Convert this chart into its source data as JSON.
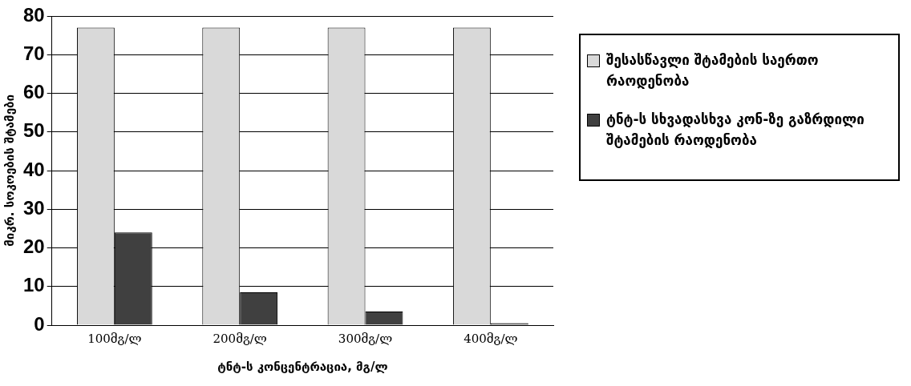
{
  "chart_data": {
    "type": "bar",
    "xlabel": "ტნტ-ს კონცენტრაცია, მგ/ლ",
    "ylabel": "მიკრ. სოკოების შტამები",
    "categories": [
      "100მგ/ლ",
      "200მგ/ლ",
      "300მგ/ლ",
      "400მგ/ლ"
    ],
    "series": [
      {
        "name": "შესასწავლი შტამების საერთო რაოდენობა",
        "color": "#d9d9d9",
        "values": [
          77,
          77,
          77,
          77
        ]
      },
      {
        "name": "ტნტ-ს სხვადასხვა კონ-ზე გაზრდილი შტამების რაოდენობა",
        "color": "#404040",
        "values": [
          24,
          8.5,
          3.5,
          0.5
        ]
      }
    ],
    "ylim": [
      0,
      80
    ],
    "yticks": [
      0,
      10,
      20,
      30,
      40,
      50,
      60,
      70,
      80
    ],
    "grid": "y",
    "legend": "right"
  }
}
